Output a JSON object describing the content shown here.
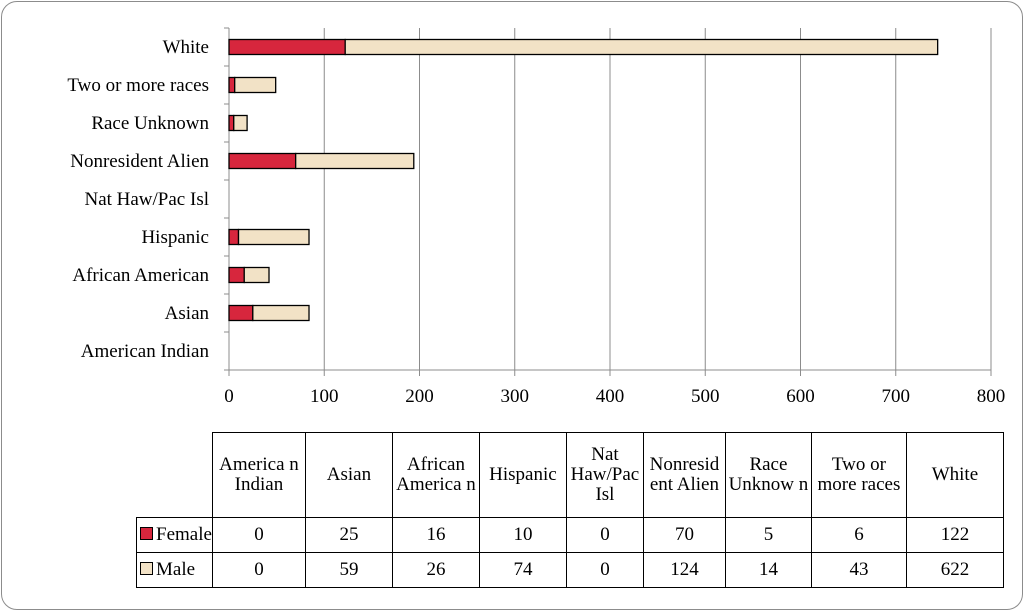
{
  "chart_data": {
    "type": "bar",
    "orientation": "horizontal",
    "stacked": true,
    "categories": [
      "American Indian",
      "Asian",
      "African American",
      "Hispanic",
      "Nat Haw/Pac Isl",
      "Nonresident Alien",
      "Race Unknown",
      "Two or more races",
      "White"
    ],
    "series": [
      {
        "name": "Female",
        "color": "#d7263d",
        "values": [
          0,
          25,
          16,
          10,
          0,
          70,
          5,
          6,
          122
        ]
      },
      {
        "name": "Male",
        "color": "#f2e2c6",
        "values": [
          0,
          59,
          26,
          74,
          0,
          124,
          14,
          43,
          622
        ]
      }
    ],
    "xlim": [
      0,
      800
    ],
    "xticks": [
      0,
      100,
      200,
      300,
      400,
      500,
      600,
      700,
      800
    ],
    "grid": "vertical",
    "legend": "data-table-below",
    "table_headers": [
      "America n Indian",
      "Asian",
      "African America n",
      "Hispanic",
      "Nat Haw/Pac Isl",
      "Nonresid ent Alien",
      "Race Unknow n",
      "Two or more races",
      "White"
    ],
    "table_rows": [
      {
        "label": "Female",
        "values": [
          "0",
          "25",
          "16",
          "10",
          "0",
          "70",
          "5",
          "6",
          "122"
        ]
      },
      {
        "label": "Male",
        "values": [
          "0",
          "59",
          "26",
          "74",
          "0",
          "124",
          "14",
          "43",
          "622"
        ]
      }
    ]
  }
}
